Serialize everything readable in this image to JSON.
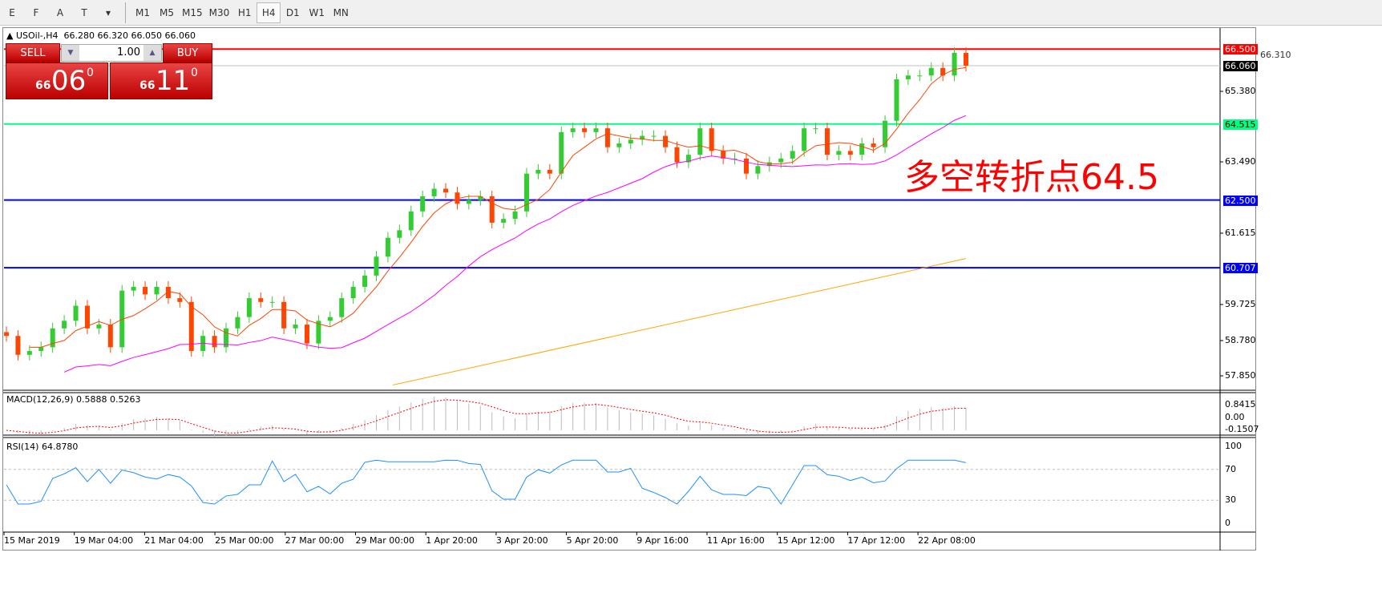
{
  "toolbar": {
    "tools": [
      {
        "name": "elliott-wave-icon",
        "label": "E"
      },
      {
        "name": "fibo-icon",
        "label": "F"
      },
      {
        "name": "text-icon",
        "label": "A"
      },
      {
        "name": "text-label-icon",
        "label": "T"
      },
      {
        "name": "arrows-icon",
        "label": "▾"
      }
    ],
    "timeframes": [
      "M1",
      "M5",
      "M15",
      "M30",
      "H1",
      "H4",
      "D1",
      "W1",
      "MN"
    ],
    "active": "H4"
  },
  "header": {
    "symbol": "USOil-,H4",
    "ohlc": "66.280 66.320 66.050 66.060"
  },
  "trade": {
    "sell_label": "SELL",
    "buy_label": "BUY",
    "lot": "1.00",
    "sell_big": "06",
    "sell_small": "66",
    "sell_sup": "0",
    "buy_big": "11",
    "buy_small": "66",
    "buy_sup": "0"
  },
  "annotation": "多空转折点64.5",
  "price_axis": [
    "65.380",
    "63.490",
    "61.615",
    "59.725",
    "58.780",
    "57.850"
  ],
  "hidden_label": "66.310",
  "levels": [
    {
      "label": "66.500",
      "price": 66.5,
      "color": "#ff0000"
    },
    {
      "label": "64.515",
      "price": 64.515,
      "color": "#00ff80"
    },
    {
      "label": "62.500",
      "price": 62.5,
      "color": "#0000ff"
    },
    {
      "label": "60.707",
      "price": 60.707,
      "color": "#0000ff"
    }
  ],
  "current": {
    "label": "66.060",
    "price": 66.06
  },
  "colors": {
    "up": "#33cc33",
    "down": "#ff4500",
    "ma_fast": "#ff4500",
    "ma_mid": "#ff00ff",
    "ma_slow": "#ffa500",
    "rsi": "#1e90ff",
    "macd_signal": "#ff0000"
  },
  "chart_data": {
    "type": "candlestick",
    "ylim": [
      57.5,
      66.9
    ],
    "closes": [
      58.9,
      58.4,
      58.5,
      58.6,
      59.1,
      59.3,
      59.7,
      59.1,
      59.2,
      58.6,
      60.1,
      60.2,
      60.0,
      60.2,
      59.9,
      59.8,
      58.5,
      58.9,
      58.6,
      59.1,
      59.4,
      59.9,
      59.8,
      59.8,
      59.1,
      59.2,
      58.7,
      59.3,
      59.4,
      59.9,
      60.2,
      60.5,
      61.0,
      61.5,
      61.7,
      62.2,
      62.6,
      62.8,
      62.7,
      62.4,
      62.5,
      62.6,
      61.9,
      62.0,
      62.2,
      63.2,
      63.3,
      63.2,
      64.3,
      64.4,
      64.3,
      64.4,
      63.9,
      64.0,
      64.1,
      64.2,
      64.2,
      63.9,
      63.5,
      63.7,
      64.4,
      63.8,
      63.6,
      63.6,
      63.2,
      63.4,
      63.5,
      63.6,
      63.8,
      64.4,
      64.4,
      63.7,
      63.8,
      63.7,
      64.0,
      63.9,
      64.6,
      65.7,
      65.8,
      65.8,
      66.0,
      65.8,
      66.4,
      66.06
    ],
    "ma_slow": {
      "from": 57.6,
      "to": 60.95
    }
  },
  "time_axis": [
    "15 Mar 2019",
    "19 Mar 04:00",
    "21 Mar 04:00",
    "25 Mar 00:00",
    "27 Mar 00:00",
    "29 Mar 00:00",
    "1 Apr 20:00",
    "3 Apr 20:00",
    "5 Apr 20:00",
    "9 Apr 16:00",
    "11 Apr 16:00",
    "15 Apr 12:00",
    "17 Apr 12:00",
    "22 Apr 08:00"
  ],
  "macd": {
    "label": "MACD(12,26,9) 0.5888 0.5263",
    "axis": [
      "0.8415",
      "0.00",
      "-0.1507"
    ]
  },
  "rsi": {
    "label": "RSI(14) 64.8780",
    "axis": [
      "100",
      "70",
      "30",
      "0"
    ]
  }
}
